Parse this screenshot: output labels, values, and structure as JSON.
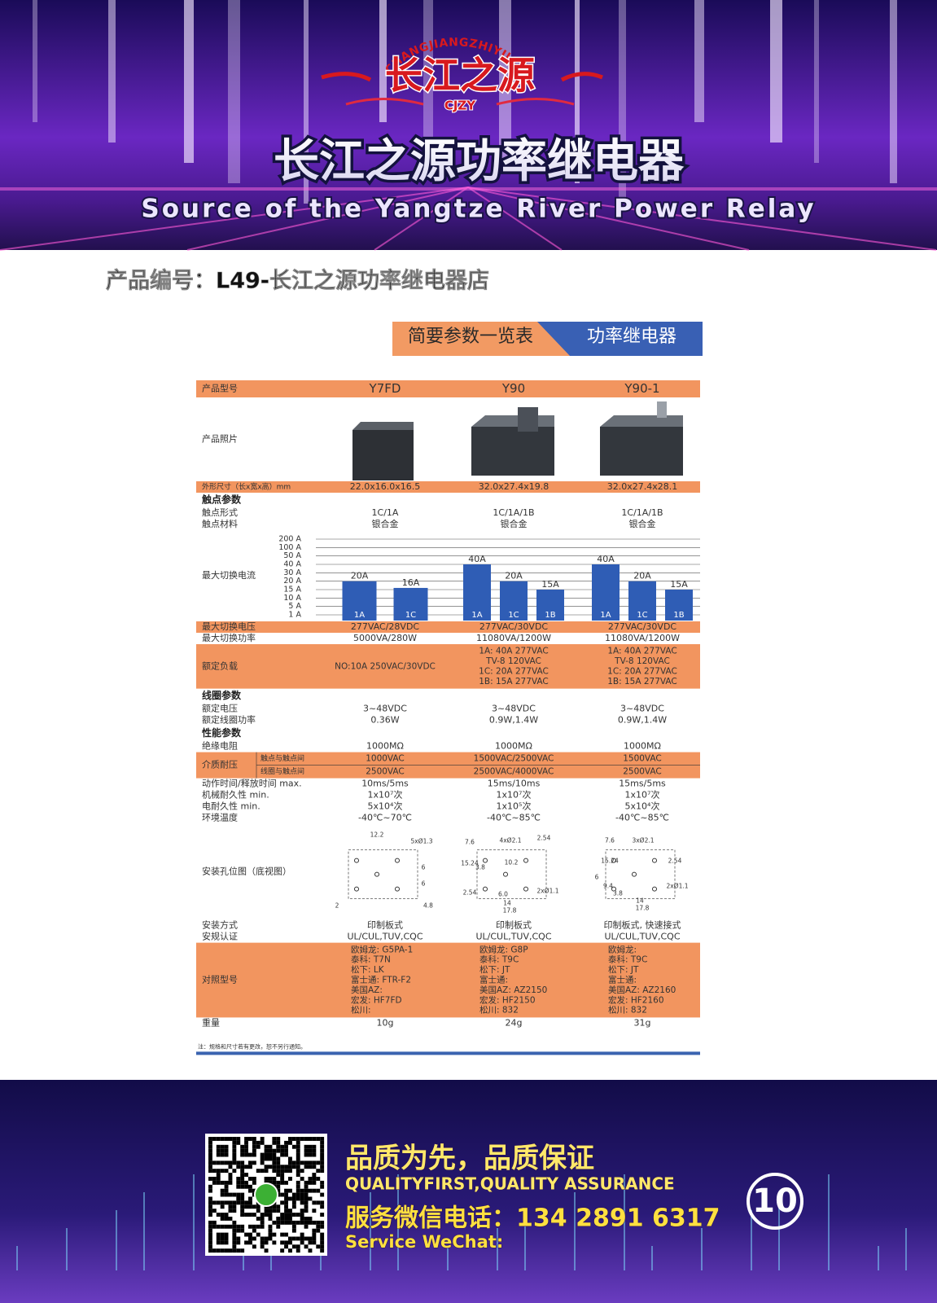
{
  "header": {
    "logo_arc": "CHANGJIANGZHIYUAN",
    "logo_text": "长江之源",
    "logo_abbr": "CJZY",
    "title": "长江之源功率继电器",
    "subtitle": "Source of the Yangtze River Power Relay"
  },
  "product_code": "产品编号：L49-长江之源功率继电器店",
  "banner": {
    "left": "简要参数一览表",
    "right": "功率继电器"
  },
  "table": {
    "rows": [
      {
        "label": "产品型号",
        "values": [
          "Y7FD",
          "Y90",
          "Y90-1"
        ],
        "highlight": true
      },
      {
        "label": "产品照片"
      },
      {
        "label": "外形尺寸（长x宽x高）mm",
        "values": [
          "22.0x16.0x16.5",
          "32.0x27.4x19.8",
          "32.0x27.4x28.1"
        ],
        "highlight": true
      },
      {
        "section": "触点参数"
      },
      {
        "label": "触点形式",
        "values": [
          "1C/1A",
          "1C/1A/1B",
          "1C/1A/1B"
        ]
      },
      {
        "label": "触点材料",
        "values": [
          "银合金",
          "银合金",
          "银合金"
        ]
      },
      {
        "label": "最大切换电流",
        "ticks": [
          {
            "value": 200,
            "label": "200 A"
          },
          {
            "value": 100,
            "label": "100 A"
          },
          {
            "value": 50,
            "label": "50 A"
          },
          {
            "value": 40,
            "label": "40 A"
          },
          {
            "value": 30,
            "label": "30 A"
          },
          {
            "value": 20,
            "label": "20 A"
          },
          {
            "value": 15,
            "label": "15 A"
          },
          {
            "value": 10,
            "label": "10 A"
          },
          {
            "value": 5,
            "label": "5 A"
          },
          {
            "value": 1,
            "label": "1 A"
          }
        ],
        "color": "#2f5db5",
        "bars": [
          [
            {
              "value": 20,
              "value_label": "20A",
              "pole": "1A"
            },
            {
              "value": 16,
              "value_label": "16A",
              "pole": "1C"
            }
          ],
          [
            {
              "value": 40,
              "value_label": "40A",
              "pole": "1A"
            },
            {
              "value": 20,
              "value_label": "20A",
              "pole": "1C"
            },
            {
              "value": 15,
              "value_label": "15A",
              "pole": "1B"
            }
          ],
          [
            {
              "value": 40,
              "value_label": "40A",
              "pole": "1A"
            },
            {
              "value": 20,
              "value_label": "20A",
              "pole": "1C"
            },
            {
              "value": 15,
              "value_label": "15A",
              "pole": "1B"
            }
          ]
        ]
      },
      {
        "label": "最大切换电压",
        "values": [
          "277VAC/28VDC",
          "277VAC/30VDC",
          "277VAC/30VDC"
        ],
        "highlight": true
      },
      {
        "label": "最大切换功率",
        "values": [
          "5000VA/280W",
          "11080VA/1200W",
          "11080VA/1200W"
        ]
      },
      {
        "label": "额定负载",
        "values": [
          [
            "NO:10A 250VAC/30VDC"
          ],
          [
            "1A: 40A 277VAC",
            "TV-8 120VAC",
            "1C: 20A 277VAC",
            "1B: 15A 277VAC"
          ],
          [
            "1A: 40A 277VAC",
            "TV-8 120VAC",
            "1C: 20A 277VAC",
            "1B: 15A 277VAC"
          ]
        ],
        "highlight": true
      },
      {
        "section": "线圈参数"
      },
      {
        "label": "额定电压",
        "values": [
          "3~48VDC",
          "3~48VDC",
          "3~48VDC"
        ]
      },
      {
        "label": "额定线圈功率",
        "values": [
          "0.36W",
          "0.9W,1.4W",
          "0.9W,1.4W"
        ]
      },
      {
        "section": "性能参数"
      },
      {
        "label": "绝缘电阻",
        "values": [
          "1000MΩ",
          "1000MΩ",
          "1000MΩ"
        ]
      },
      {
        "label": "介质耐压",
        "sublabels": [
          "触点与触点间",
          "线圈与触点间"
        ],
        "values": [
          [
            "1000VAC",
            "2500VAC"
          ],
          [
            "1500VAC/2500VAC",
            "2500VAC/4000VAC"
          ],
          [
            "1500VAC",
            "2500VAC"
          ]
        ],
        "highlight": true
      },
      {
        "label": "动作时间/释放时间 max.",
        "values": [
          "10ms/5ms",
          "15ms/10ms",
          "15ms/5ms"
        ]
      },
      {
        "label": "机械耐久性 min.",
        "values": [
          "1x10⁷次",
          "1x10⁷次",
          "1x10⁷次"
        ]
      },
      {
        "label": "电耐久性 min.",
        "values": [
          "5x10⁴次",
          "1x10⁵次",
          "5x10⁴次"
        ]
      },
      {
        "label": "环境温度",
        "values": [
          "-40℃~70℃",
          "-40℃~85℃",
          "-40℃~85℃"
        ]
      },
      {
        "label": "安装孔位图（底视图）",
        "dims": [
          [
            "12.2",
            "5xØ1.3",
            "6",
            "6",
            "2",
            "4.8"
          ],
          [
            "7.6",
            "2.54",
            "4xØ2.1",
            "15.24",
            "3.8",
            "10.2",
            "2.54",
            "6.0",
            "14",
            "17.8",
            "2xØ1.1"
          ],
          [
            "7.6",
            "3xØ2.1",
            "15.24",
            "2.54",
            "6",
            "9.4",
            "3.8",
            "14",
            "17.8",
            "2xØ1.1"
          ]
        ]
      },
      {
        "label": "安装方式",
        "values": [
          "印制板式",
          "印制板式",
          "印制板式, 快速接式"
        ]
      },
      {
        "label": "安规认证",
        "values": [
          "UL/CUL,TUV,CQC",
          "UL/CUL,TUV,CQC",
          "UL/CUL,TUV,CQC"
        ]
      },
      {
        "label": "对照型号",
        "values": [
          [
            "欧姆龙: G5PA-1",
            "泰科: T7N",
            "松下: LK",
            "富士通: FTR-F2",
            "美国AZ:",
            "宏发: HF7FD",
            "松川:"
          ],
          [
            "欧姆龙: G8P",
            "泰科: T9C",
            "松下: JT",
            "富士通:",
            "美国AZ: AZ2150",
            "宏发: HF2150",
            "松川: 832"
          ],
          [
            "欧姆龙:",
            "泰科: T9C",
            "松下: JT",
            "富士通:",
            "美国AZ: AZ2160",
            "宏发: HF2160",
            "松川: 832"
          ]
        ],
        "highlight": true
      },
      {
        "label": "重量",
        "values": [
          "10g",
          "24g",
          "31g"
        ]
      }
    ],
    "note": "注：规格和尺寸若有更改，恕不另行通知。"
  },
  "footer": {
    "slogan": "品质为先，品质保证",
    "slogan_en": "QUALITYFIRST,QUALITY ASSURANCE",
    "phone": "服务微信电话：134 2891 6317",
    "wechat": "Service WeChat:",
    "page": "10"
  }
}
